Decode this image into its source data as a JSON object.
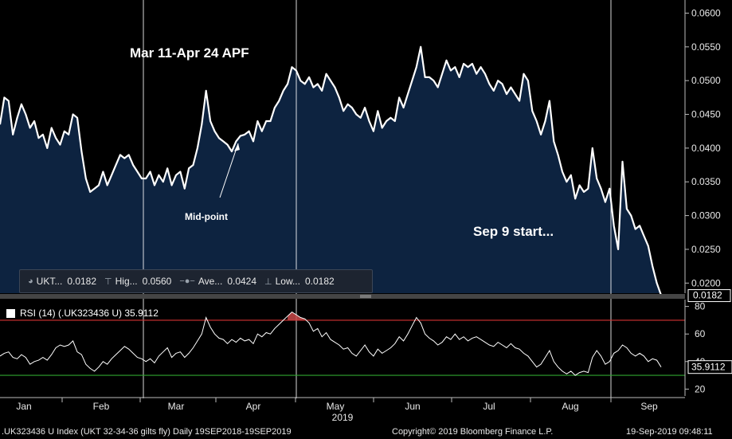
{
  "chart_data": [
    {
      "type": "area",
      "title": "",
      "ylim": [
        0.0185,
        0.061
      ],
      "y_ticks": [
        "0.0600",
        "0.0550",
        "0.0500",
        "0.0450",
        "0.0400",
        "0.0350",
        "0.0300",
        "0.0250",
        "0.0200"
      ],
      "last_value_label": "0.0182",
      "colors": {
        "line": "#ffffff",
        "fill": "#0d2340",
        "background": "#000000"
      },
      "series": [
        {
          "name": "UKT...",
          "values": [
            0.0435,
            0.0475,
            0.047,
            0.042,
            0.0445,
            0.0465,
            0.045,
            0.043,
            0.044,
            0.0415,
            0.042,
            0.04,
            0.043,
            0.0415,
            0.0405,
            0.0425,
            0.042,
            0.045,
            0.0445,
            0.0395,
            0.0355,
            0.0335,
            0.034,
            0.0345,
            0.0365,
            0.0345,
            0.036,
            0.0375,
            0.039,
            0.0385,
            0.039,
            0.0375,
            0.0365,
            0.0355,
            0.0355,
            0.0365,
            0.0345,
            0.036,
            0.035,
            0.037,
            0.0345,
            0.036,
            0.0365,
            0.034,
            0.037,
            0.0375,
            0.04,
            0.0435,
            0.0485,
            0.044,
            0.0425,
            0.0415,
            0.041,
            0.0405,
            0.0395,
            0.041,
            0.0418,
            0.042,
            0.0425,
            0.041,
            0.044,
            0.0425,
            0.044,
            0.044,
            0.046,
            0.047,
            0.0485,
            0.0495,
            0.052,
            0.0515,
            0.05,
            0.0495,
            0.0505,
            0.049,
            0.0495,
            0.0485,
            0.051,
            0.05,
            0.049,
            0.0475,
            0.0455,
            0.0465,
            0.046,
            0.045,
            0.0445,
            0.046,
            0.044,
            0.0425,
            0.0455,
            0.043,
            0.044,
            0.0445,
            0.044,
            0.0475,
            0.046,
            0.048,
            0.05,
            0.052,
            0.055,
            0.0505,
            0.0505,
            0.05,
            0.049,
            0.051,
            0.053,
            0.0515,
            0.052,
            0.0505,
            0.0525,
            0.052,
            0.0525,
            0.051,
            0.052,
            0.051,
            0.0495,
            0.0485,
            0.05,
            0.0495,
            0.048,
            0.049,
            0.048,
            0.047,
            0.051,
            0.05,
            0.0455,
            0.044,
            0.042,
            0.044,
            0.047,
            0.041,
            0.039,
            0.0365,
            0.035,
            0.036,
            0.0325,
            0.0345,
            0.0335,
            0.034,
            0.04,
            0.0355,
            0.034,
            0.032,
            0.034,
            0.0285,
            0.025,
            0.038,
            0.031,
            0.03,
            0.028,
            0.0285,
            0.027,
            0.0255,
            0.0225,
            0.02,
            0.0182
          ]
        }
      ],
      "stats": [
        {
          "icon": "last-price-icon",
          "label": "UKT...",
          "value": "0.0182"
        },
        {
          "icon": "high-icon",
          "label": "Hig...",
          "value": "0.0560"
        },
        {
          "icon": "average-icon",
          "label": "Ave...",
          "value": "0.0424"
        },
        {
          "icon": "low-icon",
          "label": "Low...",
          "value": "0.0182"
        }
      ],
      "annotations": {
        "apf": "Mar 11-Apr 24 APF",
        "midpoint": "Mid-point",
        "sep9": "Sep 9 start..."
      }
    },
    {
      "type": "line",
      "title": "RSI (14) (.UK323436 U) 35.9112",
      "ylim": [
        15,
        85
      ],
      "y_ticks": [
        80,
        60,
        40,
        20
      ],
      "overbought": 70,
      "oversold": 30,
      "last_value_label": "35.9112",
      "colors": {
        "line": "#ffffff",
        "overbought": "#d23232",
        "oversold": "#2fa52f"
      },
      "series": [
        {
          "name": "RSI (14)",
          "values": [
            44,
            46,
            47,
            43,
            42,
            45,
            43,
            38,
            40,
            41,
            43,
            41,
            45,
            50,
            52,
            51,
            52,
            55,
            47,
            45,
            38,
            35,
            33,
            36,
            40,
            38,
            42,
            45,
            48,
            51,
            49,
            46,
            43,
            42,
            40,
            42,
            39,
            44,
            47,
            50,
            43,
            46,
            47,
            43,
            46,
            50,
            55,
            60,
            72,
            65,
            60,
            57,
            56,
            53,
            56,
            54,
            57,
            55,
            56,
            53,
            60,
            58,
            61,
            60,
            64,
            67,
            70,
            73,
            76,
            74,
            72,
            71,
            68,
            62,
            64,
            58,
            61,
            56,
            54,
            52,
            49,
            50,
            46,
            44,
            48,
            52,
            47,
            44,
            49,
            46,
            48,
            50,
            53,
            58,
            55,
            60,
            66,
            72,
            68,
            60,
            57,
            55,
            52,
            54,
            58,
            56,
            60,
            56,
            58,
            55,
            57,
            58,
            56,
            54,
            52,
            51,
            54,
            52,
            50,
            53,
            50,
            49,
            46,
            44,
            40,
            36,
            38,
            43,
            48,
            40,
            36,
            33,
            31,
            33,
            30,
            32,
            33,
            32,
            43,
            48,
            44,
            38,
            40,
            46,
            48,
            52,
            50,
            46,
            44,
            46,
            44,
            40,
            42,
            41,
            36
          ]
        }
      ]
    }
  ],
  "x_ticks": [
    "Jan",
    "Feb",
    "Mar",
    "Apr",
    "May",
    "Jun",
    "Jul",
    "Aug",
    "Sep"
  ],
  "x_year": "2019",
  "footer": {
    "left": ".UK323436 U Index (UKT 32-34-36 gilts fly)  Daily 19SEP2018-19SEP2019",
    "center": "Copyright© 2019 Bloomberg Finance L.P.",
    "right": "19-Sep-2019 09:48:11"
  }
}
